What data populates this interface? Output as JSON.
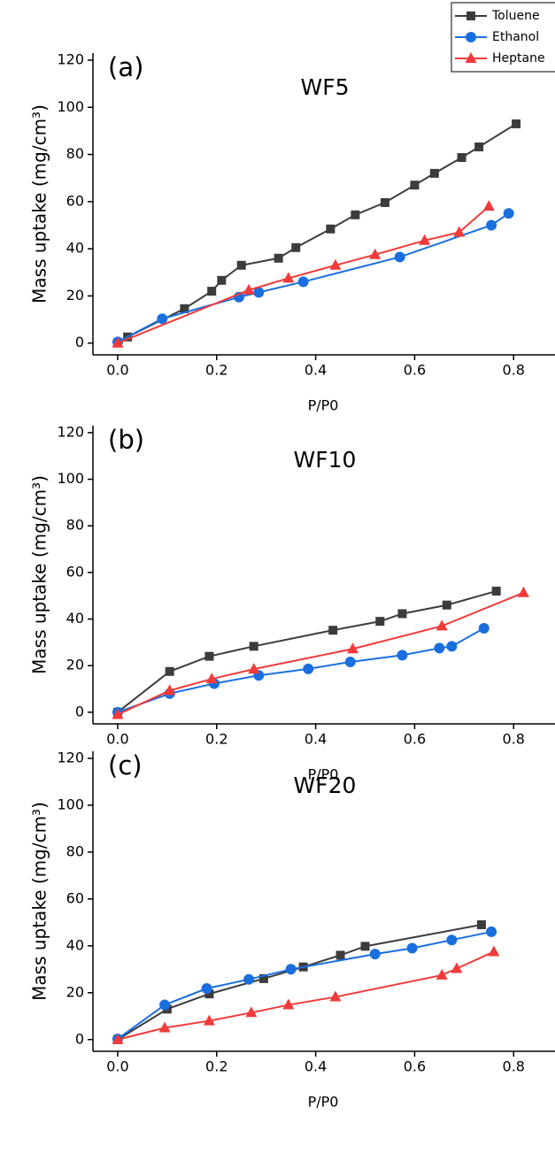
{
  "chart_data": [
    {
      "type": "line",
      "panel_label": "(a)",
      "title": "WF5",
      "xlabel": "P/P0",
      "ylabel": "Mass uptake (mg/cm³)",
      "xlim": [
        -0.05,
        0.88
      ],
      "ylim": [
        -5,
        123
      ],
      "xticks": [
        {
          "value": 0,
          "label": "0.0"
        },
        0.2,
        0.4,
        0.6,
        0.8
      ],
      "yticks": [
        0,
        20,
        40,
        60,
        80,
        100,
        120
      ],
      "legend": "upper right",
      "series": [
        {
          "name": "Toluene",
          "color": "#3c3c3c",
          "marker": "square",
          "x": [
            0,
            0.02,
            0.135,
            0.19,
            0.21,
            0.25,
            0.325,
            0.36,
            0.43,
            0.48,
            0.54,
            0.6,
            0.64,
            0.695,
            0.73,
            0.805
          ],
          "values": [
            0,
            2.6,
            14.6,
            22,
            26.6,
            33,
            36,
            40.5,
            48.4,
            54.4,
            59.6,
            67,
            72,
            78.7,
            83.2,
            93
          ]
        },
        {
          "name": "Ethanol",
          "color": "#1a6fdf",
          "marker": "circle",
          "x": [
            0,
            0.09,
            0.245,
            0.285,
            0.375,
            0.57,
            0.755,
            0.79
          ],
          "values": [
            0.5,
            10.3,
            19.5,
            21.5,
            26,
            36.5,
            50,
            55
          ]
        },
        {
          "name": "Heptane",
          "color": "#f23a3a",
          "marker": "triangle",
          "x": [
            0,
            0.265,
            0.345,
            0.44,
            0.52,
            0.62,
            0.69,
            0.75
          ],
          "values": [
            0,
            22.5,
            27.5,
            33,
            37.5,
            43.5,
            47,
            58
          ]
        }
      ]
    },
    {
      "type": "line",
      "panel_label": "(b)",
      "title": "WF10",
      "xlabel": "P/P0",
      "ylabel": "Mass uptake (mg/cm³)",
      "xlim": [
        -0.05,
        0.88
      ],
      "ylim": [
        -5,
        123
      ],
      "xticks": [
        {
          "value": 0,
          "label": "0.0"
        },
        0.2,
        0.4,
        0.6,
        0.8
      ],
      "yticks": [
        0,
        20,
        40,
        60,
        80,
        100,
        120
      ],
      "series": [
        {
          "color": "#3c3c3c",
          "marker": "square",
          "x": [
            0,
            0.105,
            0.185,
            0.275,
            0.435,
            0.53,
            0.575,
            0.665,
            0.765
          ],
          "values": [
            0,
            17.5,
            24,
            28.3,
            35.2,
            39,
            42.3,
            46,
            52
          ]
        },
        {
          "color": "#1a6fdf",
          "marker": "circle",
          "x": [
            0,
            0.105,
            0.195,
            0.285,
            0.385,
            0.47,
            0.575,
            0.65,
            0.675,
            0.74
          ],
          "values": [
            0,
            8,
            12.3,
            15.8,
            18.6,
            21.6,
            24.5,
            27.5,
            28.3,
            36
          ]
        },
        {
          "color": "#f23a3a",
          "marker": "triangle",
          "x": [
            0,
            0.105,
            0.19,
            0.275,
            0.475,
            0.655,
            0.82
          ],
          "values": [
            -1,
            9.3,
            14.3,
            18.5,
            27.2,
            37,
            51.3
          ]
        }
      ]
    },
    {
      "type": "line",
      "panel_label": "(c)",
      "title": "WF20",
      "xlabel": "P/P0",
      "ylabel": "Mass uptake (mg/cm³)",
      "xlim": [
        -0.05,
        0.88
      ],
      "ylim": [
        -5,
        123
      ],
      "xticks": [
        {
          "value": 0,
          "label": "0.0"
        },
        0.2,
        0.4,
        0.6,
        0.8
      ],
      "yticks": [
        0,
        20,
        40,
        60,
        80,
        100,
        120
      ],
      "series": [
        {
          "color": "#3c3c3c",
          "marker": "square",
          "x": [
            0,
            0.1,
            0.185,
            0.295,
            0.375,
            0.45,
            0.5,
            0.735
          ],
          "values": [
            0,
            13,
            19.5,
            26,
            31,
            36,
            39.8,
            49
          ]
        },
        {
          "color": "#1a6fdf",
          "marker": "circle",
          "x": [
            0,
            0.095,
            0.18,
            0.265,
            0.35,
            0.52,
            0.595,
            0.675,
            0.755
          ],
          "values": [
            0.3,
            14.8,
            21.8,
            25.7,
            30,
            36.5,
            39,
            42.5,
            46
          ]
        },
        {
          "color": "#f23a3a",
          "marker": "triangle",
          "x": [
            0,
            0.095,
            0.185,
            0.27,
            0.345,
            0.44,
            0.655,
            0.685,
            0.76
          ],
          "values": [
            0,
            5,
            8,
            11.5,
            14.8,
            18.2,
            27.5,
            30.3,
            37.5
          ]
        }
      ]
    }
  ]
}
